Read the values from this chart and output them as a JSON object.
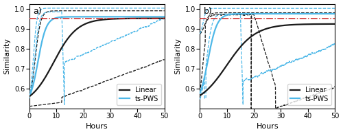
{
  "title_a": "a)",
  "title_b": "b)",
  "xlabel": "Hours",
  "ylabel": "Similarity",
  "xlim": [
    0,
    50
  ],
  "ylim": [
    0.5,
    1.025
  ],
  "yticks": [
    0.6,
    0.7,
    0.8,
    0.9,
    1.0
  ],
  "xticks": [
    0,
    10,
    20,
    30,
    40,
    50
  ],
  "red_line_y": 0.95,
  "linear_color": "#1a1a1a",
  "tspws_color": "#4eb8e8",
  "red_color": "#cc2222",
  "figsize": [
    5.0,
    1.95
  ],
  "dpi": 100
}
